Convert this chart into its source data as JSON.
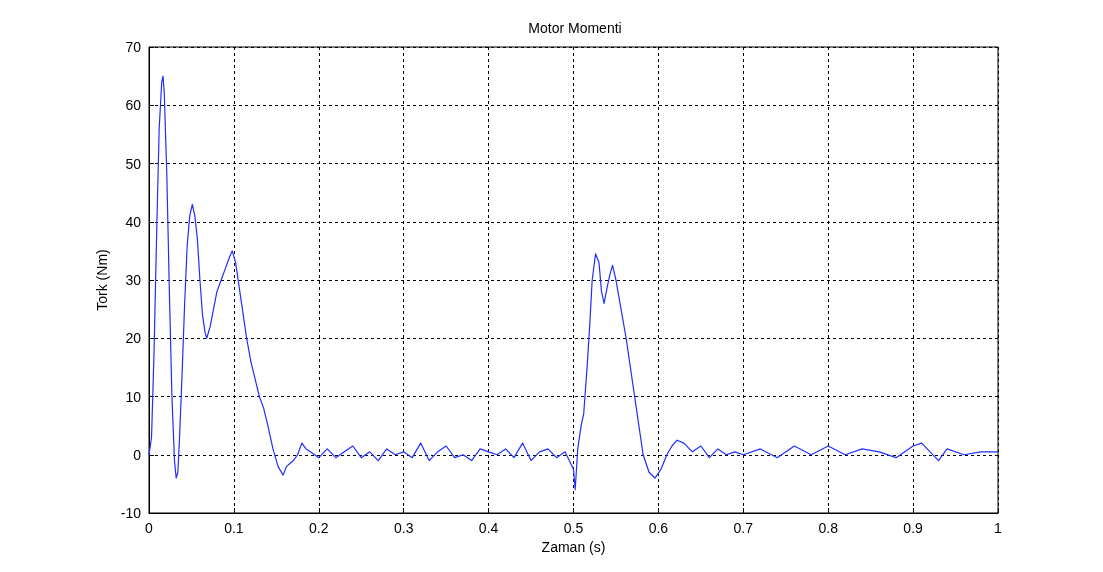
{
  "chart_data": {
    "type": "line",
    "title": "Motor Momenti",
    "xlabel": "Zaman (s)",
    "ylabel": "Tork (Nm)",
    "xlim": [
      0,
      1
    ],
    "xticks": [
      0,
      0.1,
      0.2,
      0.3,
      0.4,
      0.5,
      0.6,
      0.7,
      0.8,
      0.9,
      1
    ],
    "ylim": [
      -10,
      70
    ],
    "yticks": [
      -10,
      0,
      10,
      20,
      30,
      40,
      50,
      60,
      70
    ],
    "grid": true,
    "marker": "none",
    "line_style": "solid",
    "series": [
      {
        "color": "#1f2fff",
        "x": [
          0,
          0.003,
          0.006,
          0.009,
          0.012,
          0.015,
          0.0165,
          0.018,
          0.021,
          0.024,
          0.027,
          0.03,
          0.032,
          0.034,
          0.036,
          0.039,
          0.042,
          0.045,
          0.048,
          0.051,
          0.054,
          0.057,
          0.06,
          0.063,
          0.066,
          0.068,
          0.072,
          0.076,
          0.08,
          0.085,
          0.09,
          0.095,
          0.098,
          0.102,
          0.106,
          0.11,
          0.115,
          0.12,
          0.125,
          0.13,
          0.135,
          0.14,
          0.146,
          0.152,
          0.158,
          0.162,
          0.166,
          0.17,
          0.175,
          0.18,
          0.185,
          0.19,
          0.2,
          0.21,
          0.22,
          0.23,
          0.24,
          0.25,
          0.26,
          0.27,
          0.28,
          0.29,
          0.3,
          0.31,
          0.32,
          0.33,
          0.34,
          0.35,
          0.36,
          0.37,
          0.38,
          0.39,
          0.4,
          0.41,
          0.42,
          0.43,
          0.44,
          0.45,
          0.46,
          0.47,
          0.48,
          0.49,
          0.495,
          0.5,
          0.502,
          0.505,
          0.509,
          0.512,
          0.516,
          0.519,
          0.522,
          0.526,
          0.53,
          0.533,
          0.536,
          0.54,
          0.543,
          0.546,
          0.55,
          0.556,
          0.562,
          0.567,
          0.572,
          0.577,
          0.582,
          0.589,
          0.596,
          0.603,
          0.61,
          0.616,
          0.622,
          0.63,
          0.64,
          0.65,
          0.66,
          0.67,
          0.68,
          0.69,
          0.7,
          0.72,
          0.74,
          0.76,
          0.78,
          0.8,
          0.82,
          0.84,
          0.86,
          0.88,
          0.9,
          0.91,
          0.92,
          0.93,
          0.94,
          0.96,
          0.98,
          1
        ],
        "values": [
          0,
          3,
          18,
          38,
          56,
          64,
          65,
          62,
          48,
          28,
          10,
          -1,
          -4,
          -3,
          3,
          14,
          26,
          36,
          41,
          43,
          41,
          37,
          30,
          24,
          21,
          20,
          22,
          25,
          28,
          30,
          32,
          34,
          35,
          33,
          29,
          25,
          20,
          16,
          13,
          10,
          8,
          5,
          1,
          -2,
          -3.5,
          -2,
          -1.5,
          -1,
          0,
          2,
          1,
          0.5,
          -0.5,
          1,
          -0.5,
          0.5,
          1.5,
          -0.5,
          0.5,
          -1,
          1,
          0,
          0.5,
          -0.5,
          2,
          -1,
          0.5,
          1.5,
          -0.5,
          0,
          -1,
          1,
          0.5,
          0,
          1,
          -0.5,
          2,
          -1,
          0.5,
          1,
          -0.5,
          0.5,
          -1,
          -2.5,
          -6,
          1,
          5,
          7,
          15,
          22,
          30,
          34.5,
          33,
          28,
          26,
          29,
          31,
          32.5,
          30,
          25,
          20,
          15,
          10,
          5,
          0,
          -3,
          -4,
          -2.5,
          0,
          1.5,
          2.5,
          2,
          0.5,
          1.5,
          -0.5,
          1,
          0,
          0.5,
          0,
          1,
          -0.5,
          1.5,
          0,
          1.5,
          0,
          1,
          0.5,
          -0.5,
          1.5,
          2,
          0.5,
          -1,
          1,
          0,
          0.5,
          0.5
        ]
      }
    ]
  }
}
